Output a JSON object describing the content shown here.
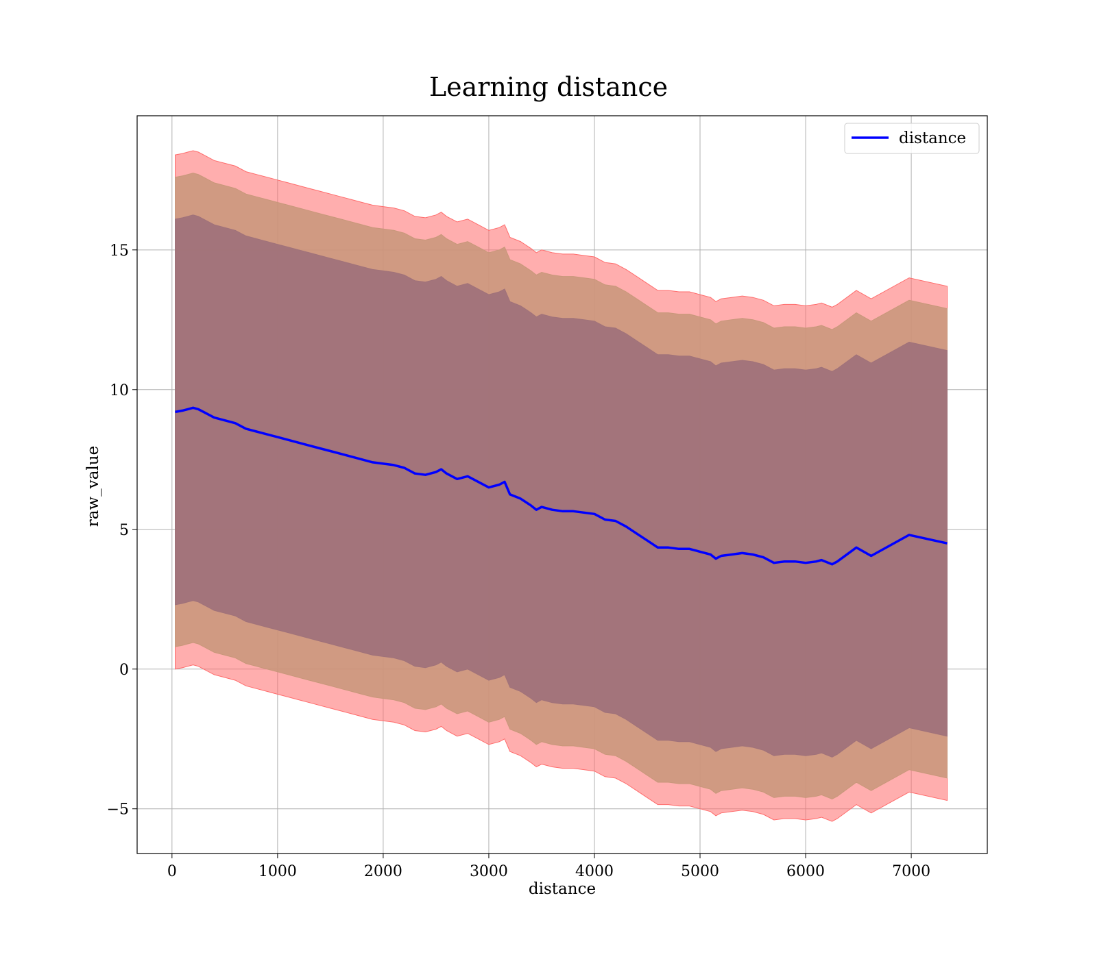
{
  "chart_data": {
    "type": "line",
    "title": "Learning distance",
    "xlabel": "distance",
    "ylabel": "raw_value",
    "xlim": [
      -330,
      7720
    ],
    "ylim": [
      -6.6,
      19.8
    ],
    "xticks": [
      0,
      1000,
      2000,
      3000,
      4000,
      5000,
      6000,
      7000
    ],
    "yticks": [
      -5,
      0,
      5,
      10,
      15
    ],
    "ytick_labels": [
      "−5",
      "0",
      "5",
      "10",
      "15"
    ],
    "grid": true,
    "legend": {
      "location": "upper right",
      "entries": [
        "distance"
      ]
    },
    "colors": {
      "line": "#0000ff",
      "band_outer": "#ff6b6b",
      "band_middle": "#c8977a",
      "band_inner": "#a0727a",
      "grid": "#b0b0b0"
    },
    "series": [
      {
        "name": "distance",
        "x": [
          30,
          100,
          150,
          200,
          250,
          300,
          400,
          500,
          600,
          700,
          800,
          900,
          1000,
          1100,
          1200,
          1300,
          1400,
          1500,
          1600,
          1700,
          1800,
          1900,
          2000,
          2100,
          2200,
          2300,
          2400,
          2500,
          2550,
          2600,
          2700,
          2800,
          2900,
          3000,
          3100,
          3150,
          3200,
          3300,
          3400,
          3450,
          3500,
          3600,
          3700,
          3800,
          3900,
          4000,
          4100,
          4200,
          4300,
          4400,
          4500,
          4600,
          4700,
          4800,
          4900,
          5000,
          5100,
          5150,
          5200,
          5300,
          5400,
          5500,
          5600,
          5700,
          5800,
          5900,
          6000,
          6100,
          6150,
          6250,
          6300,
          6480,
          6620,
          6980,
          7340
        ],
        "y": [
          9.2,
          9.25,
          9.3,
          9.35,
          9.3,
          9.2,
          9.0,
          8.9,
          8.8,
          8.6,
          8.5,
          8.4,
          8.3,
          8.2,
          8.1,
          8.0,
          7.9,
          7.8,
          7.7,
          7.6,
          7.5,
          7.4,
          7.35,
          7.3,
          7.2,
          7.0,
          6.95,
          7.05,
          7.15,
          7.0,
          6.8,
          6.9,
          6.7,
          6.5,
          6.6,
          6.7,
          6.25,
          6.1,
          5.85,
          5.7,
          5.8,
          5.7,
          5.65,
          5.65,
          5.6,
          5.55,
          5.35,
          5.3,
          5.1,
          4.85,
          4.6,
          4.35,
          4.35,
          4.3,
          4.3,
          4.2,
          4.1,
          3.95,
          4.05,
          4.1,
          4.15,
          4.1,
          4.0,
          3.8,
          3.85,
          3.85,
          3.8,
          3.85,
          3.9,
          3.75,
          3.85,
          4.35,
          4.05,
          4.8,
          4.5
        ]
      }
    ],
    "bands": [
      {
        "level": "outer",
        "half_width": 9.2
      },
      {
        "level": "middle",
        "half_width": 8.4
      },
      {
        "level": "inner",
        "half_width": 6.9
      }
    ]
  }
}
